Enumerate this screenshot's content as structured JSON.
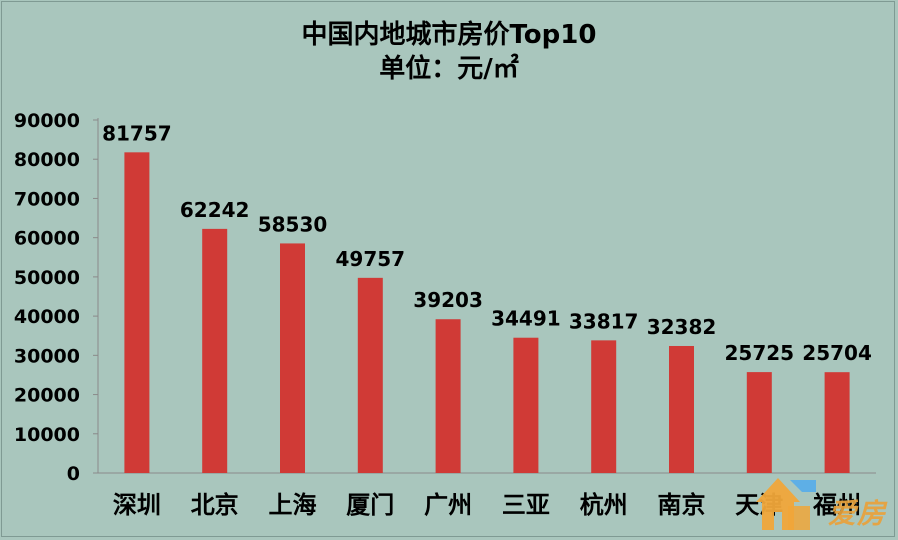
{
  "chart_data": {
    "type": "bar",
    "title": "中国内地城市房价Top10",
    "subtitle": "单位：元/㎡",
    "categories": [
      "深圳",
      "北京",
      "上海",
      "厦门",
      "广州",
      "三亚",
      "杭州",
      "南京",
      "天津",
      "福州"
    ],
    "values": [
      81757,
      62242,
      58530,
      49757,
      39203,
      34491,
      33817,
      32382,
      25725,
      25704
    ],
    "ylim": [
      0,
      90000
    ],
    "yticks": [
      0,
      10000,
      20000,
      30000,
      40000,
      50000,
      60000,
      70000,
      80000,
      90000
    ],
    "bar_color": "#d03a36",
    "background": "#a9c6bd",
    "grid": false,
    "legend": false
  },
  "watermark": {
    "text": "爱房"
  }
}
